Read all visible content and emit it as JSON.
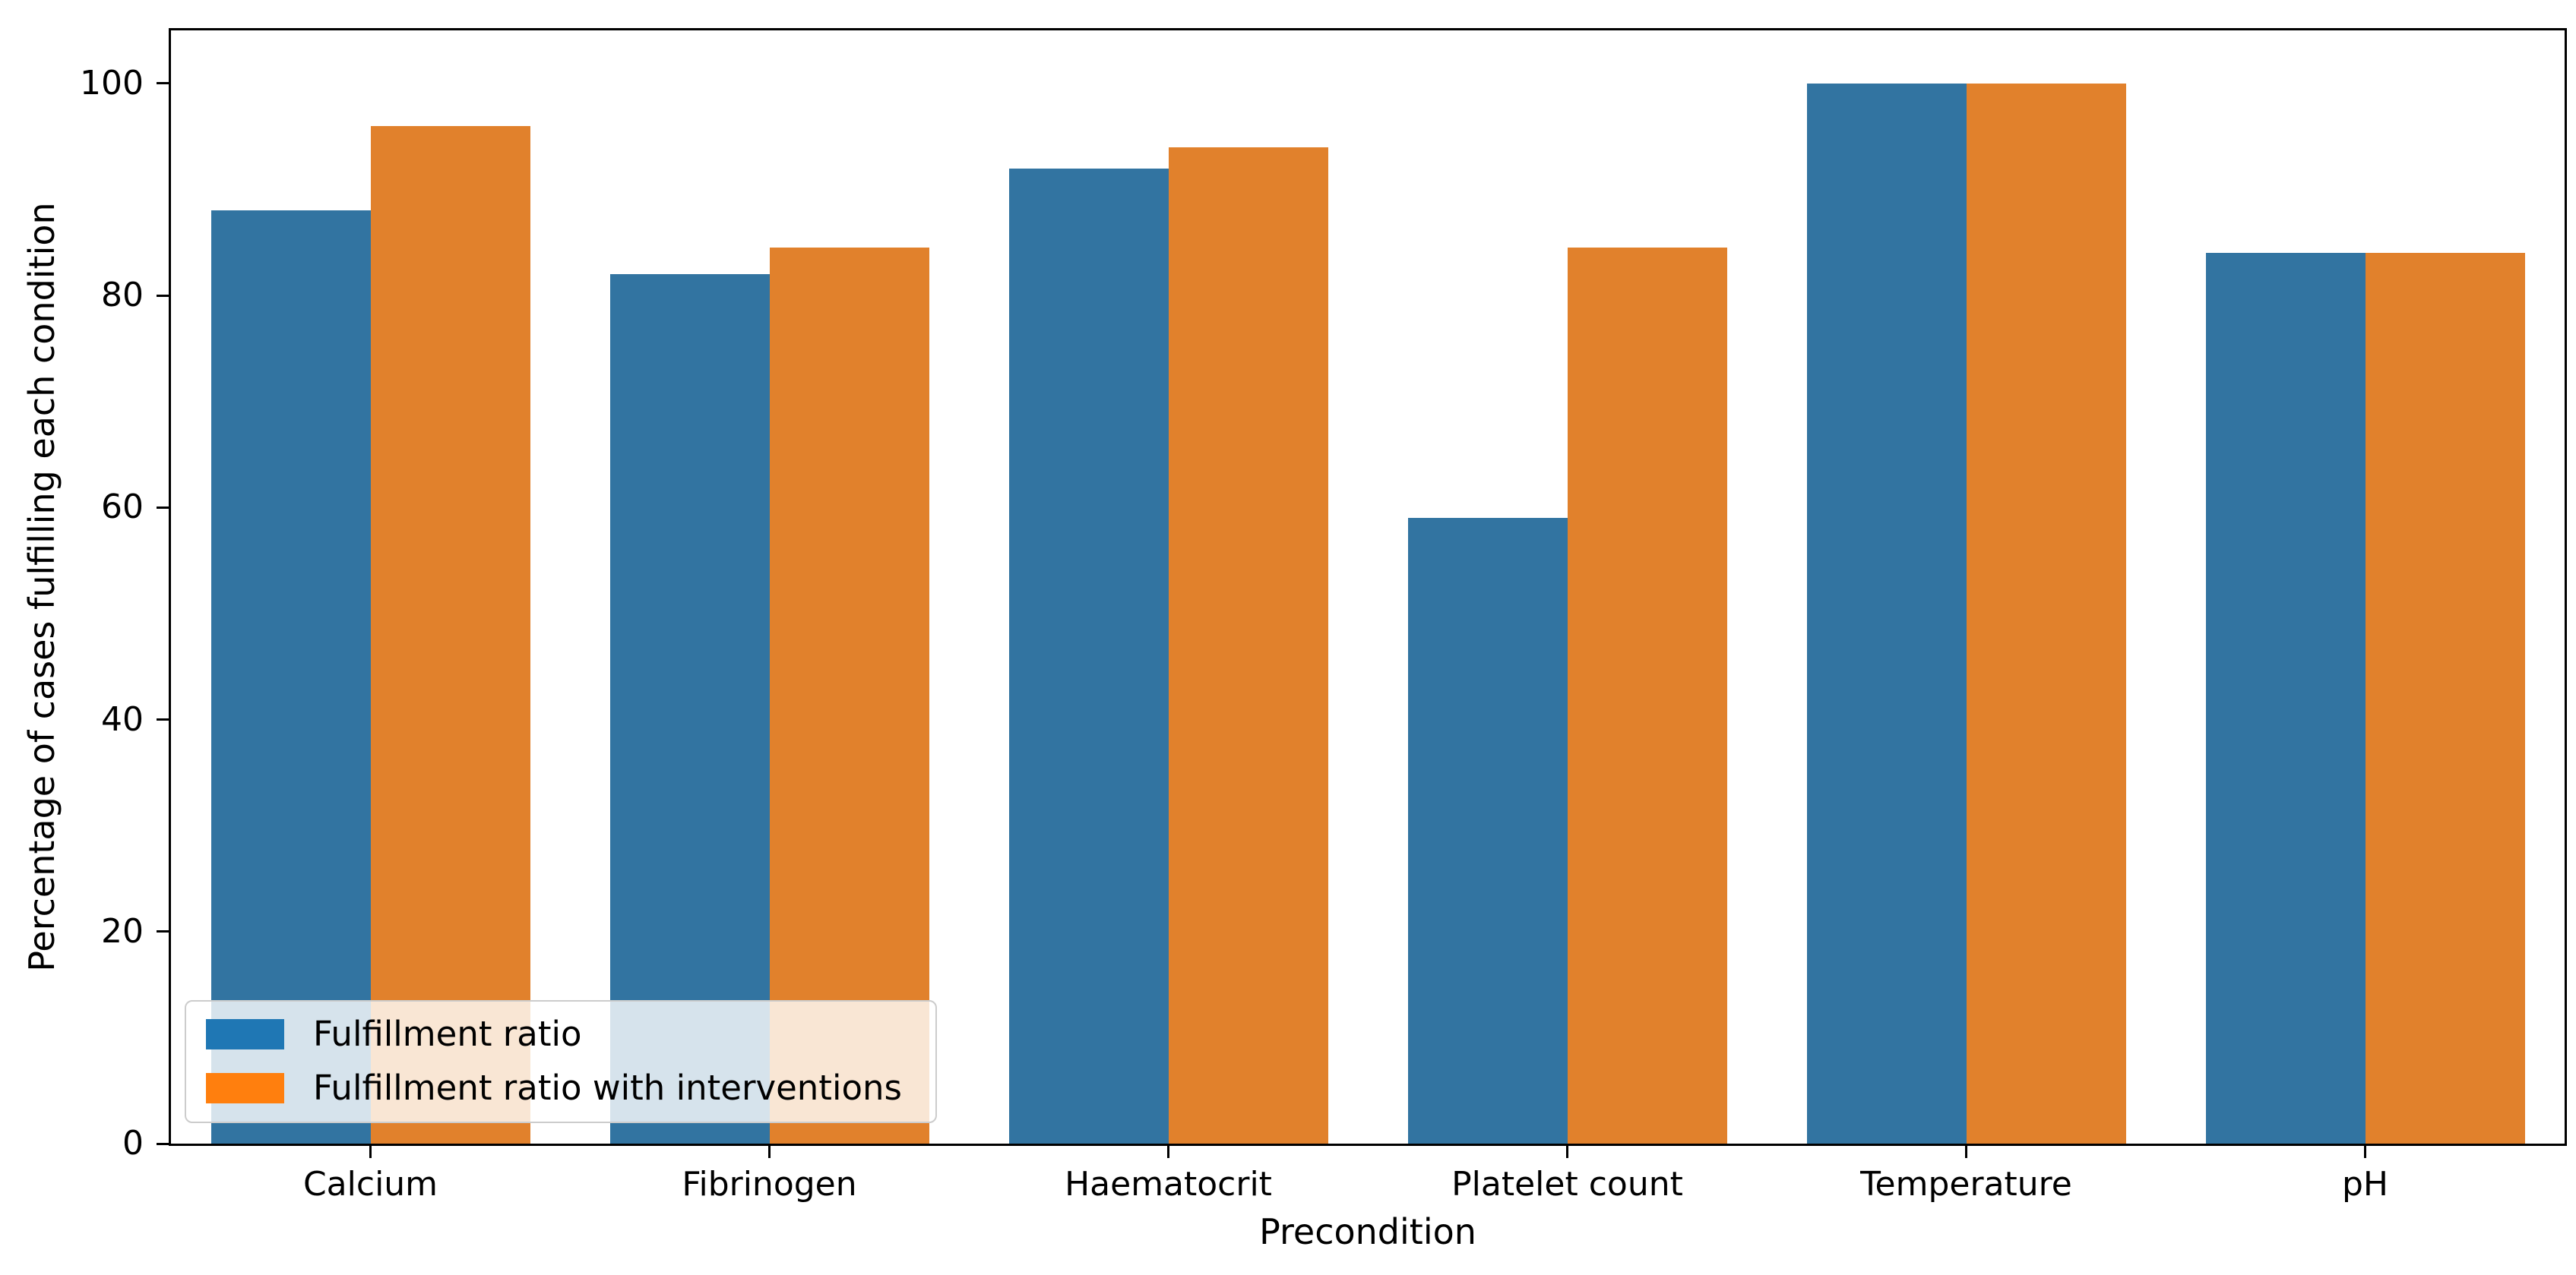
{
  "figure": {
    "background": "#ffffff",
    "spine_color": "#000000",
    "text_color": "#000000"
  },
  "axes": {
    "xlabel": "Precondition",
    "ylabel": "Percentage of cases fulfilling each condition"
  },
  "legend": {
    "background": "rgba(255,255,255,0.8)",
    "border_color": "#cccccc",
    "entries": [
      {
        "label": "Fulfillment ratio",
        "swatch_color": "#1f77b4"
      },
      {
        "label": "Fulfillment ratio with interventions",
        "swatch_color": "#ff7f0e"
      }
    ]
  },
  "chart_data": {
    "type": "bar",
    "title": "",
    "xlabel": "Precondition",
    "ylabel": "Percentage of cases fulfilling each condition",
    "categories": [
      "Calcium",
      "Fibrinogen",
      "Haematocrit",
      "Platelet count",
      "Temperature",
      "pH"
    ],
    "series": [
      {
        "name": "Fulfillment ratio",
        "color": "#3274a1",
        "values": [
          88,
          82,
          92,
          59,
          100,
          84
        ]
      },
      {
        "name": "Fulfillment ratio with interventions",
        "color": "#e1812c",
        "values": [
          96,
          84.5,
          94,
          84.5,
          100,
          84
        ]
      }
    ],
    "y_ticks": [
      0,
      20,
      40,
      60,
      80,
      100
    ],
    "ylim": [
      0,
      105
    ],
    "grid": false,
    "legend_position": "lower left",
    "bar_group_width_fraction": 0.8
  }
}
